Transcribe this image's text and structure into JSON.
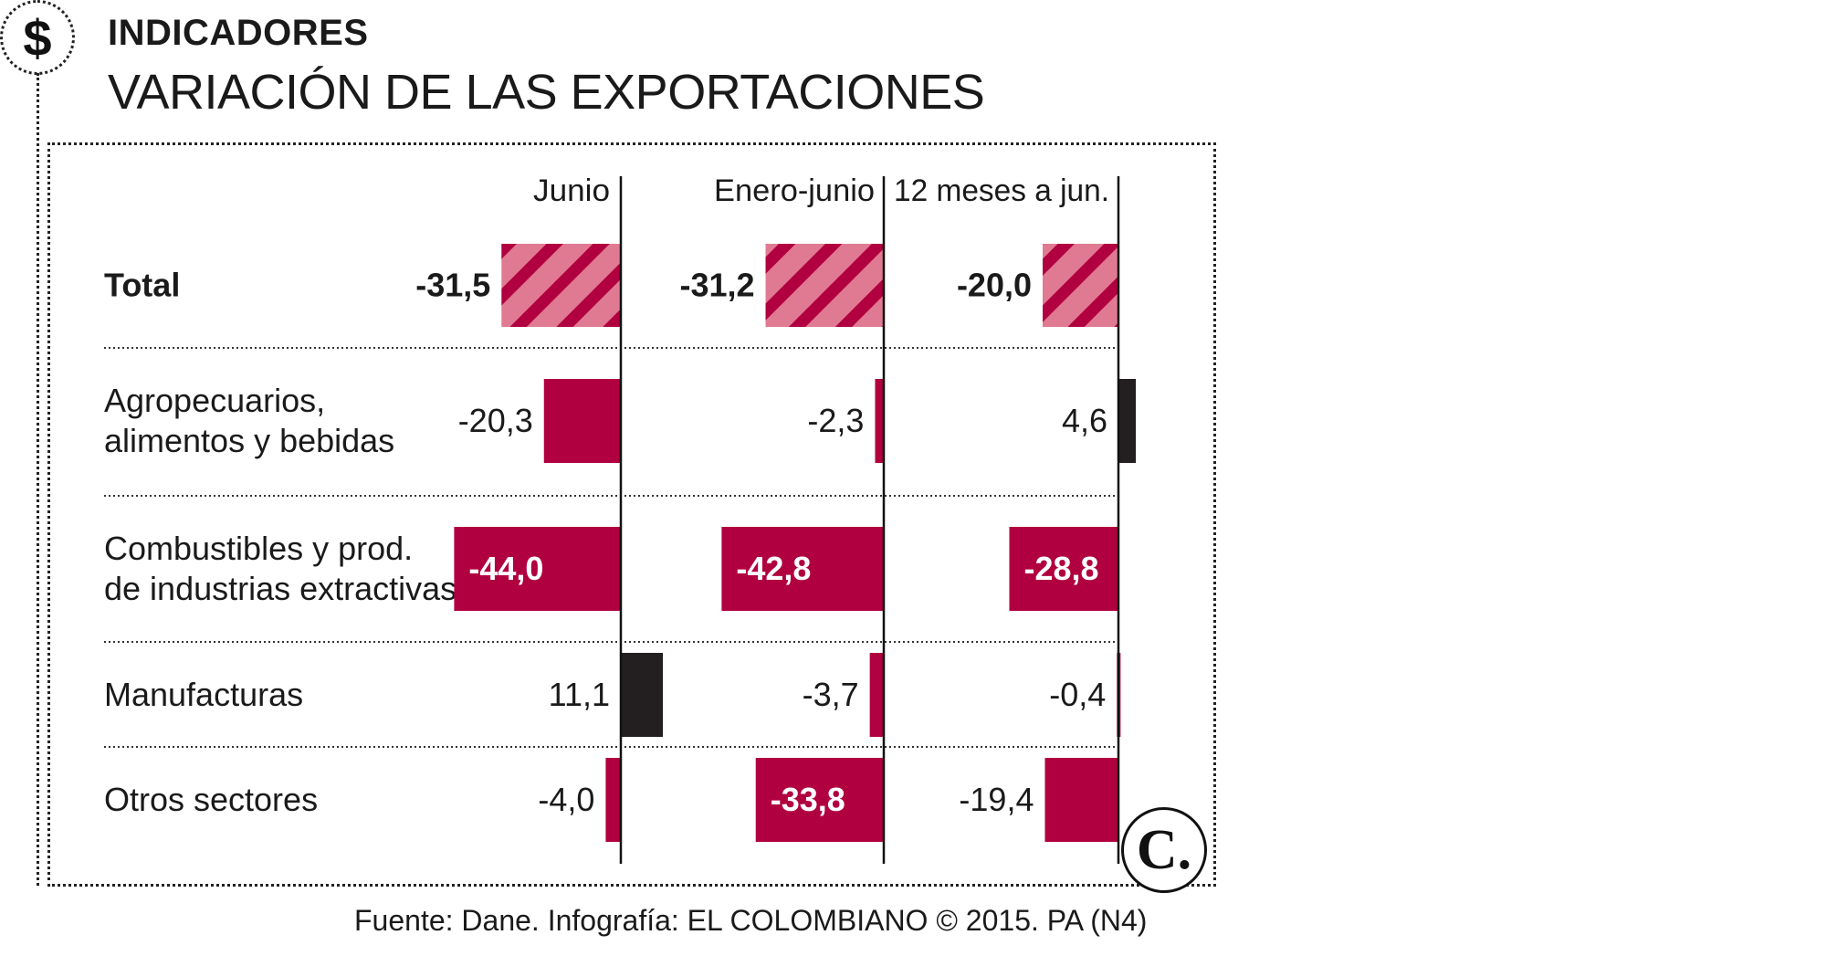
{
  "header": {
    "section": "INDICADORES",
    "title": "VARIACIÓN DE LAS EXPORTACIONES",
    "icon": "dollar-icon"
  },
  "source": "Fuente: Dane. Infografía: EL COLOMBIANO © 2015. PA (N4)",
  "logo": {
    "text": "C.",
    "icon": "el-colombiano-logo"
  },
  "colors": {
    "negative": "#b1003f",
    "positive": "#231f20",
    "total_hatch_light": "#e07a92",
    "total_hatch_dark": "#b1003f"
  },
  "chart_data": {
    "type": "bar",
    "title": "VARIACIÓN DE LAS EXPORTACIONES",
    "columns": [
      "Junio",
      "Enero-junio",
      "12 meses a jun."
    ],
    "categories": [
      "Total",
      "Agropecuarios, alimentos y bebidas",
      "Combustibles y prod. de industrias extractivas",
      "Manufacturas",
      "Otros sectores"
    ],
    "category_lines": [
      [
        "Total"
      ],
      [
        "Agropecuarios,",
        "alimentos y bebidas"
      ],
      [
        "Combustibles y prod.",
        "de industrias extractivas"
      ],
      [
        "Manufacturas"
      ],
      [
        "Otros sectores"
      ]
    ],
    "series": [
      {
        "values": [
          -31.5,
          -20.3,
          -44.0,
          11.1,
          -4.0
        ],
        "labels": [
          "-31,5",
          "-20,3",
          "-44,0",
          "11,1",
          "-4,0"
        ]
      },
      {
        "values": [
          -31.2,
          -2.3,
          -42.8,
          -3.7,
          -33.8
        ],
        "labels": [
          "-31,2",
          "-2,3",
          "-42,8",
          "-3,7",
          "-33,8"
        ]
      },
      {
        "values": [
          -20.0,
          4.6,
          -28.8,
          -0.4,
          -19.4
        ],
        "labels": [
          "-20,0",
          "4,6",
          "-28,8",
          "-0,4",
          "-19,4"
        ]
      }
    ],
    "highlight_row": "Total",
    "grid": false
  }
}
